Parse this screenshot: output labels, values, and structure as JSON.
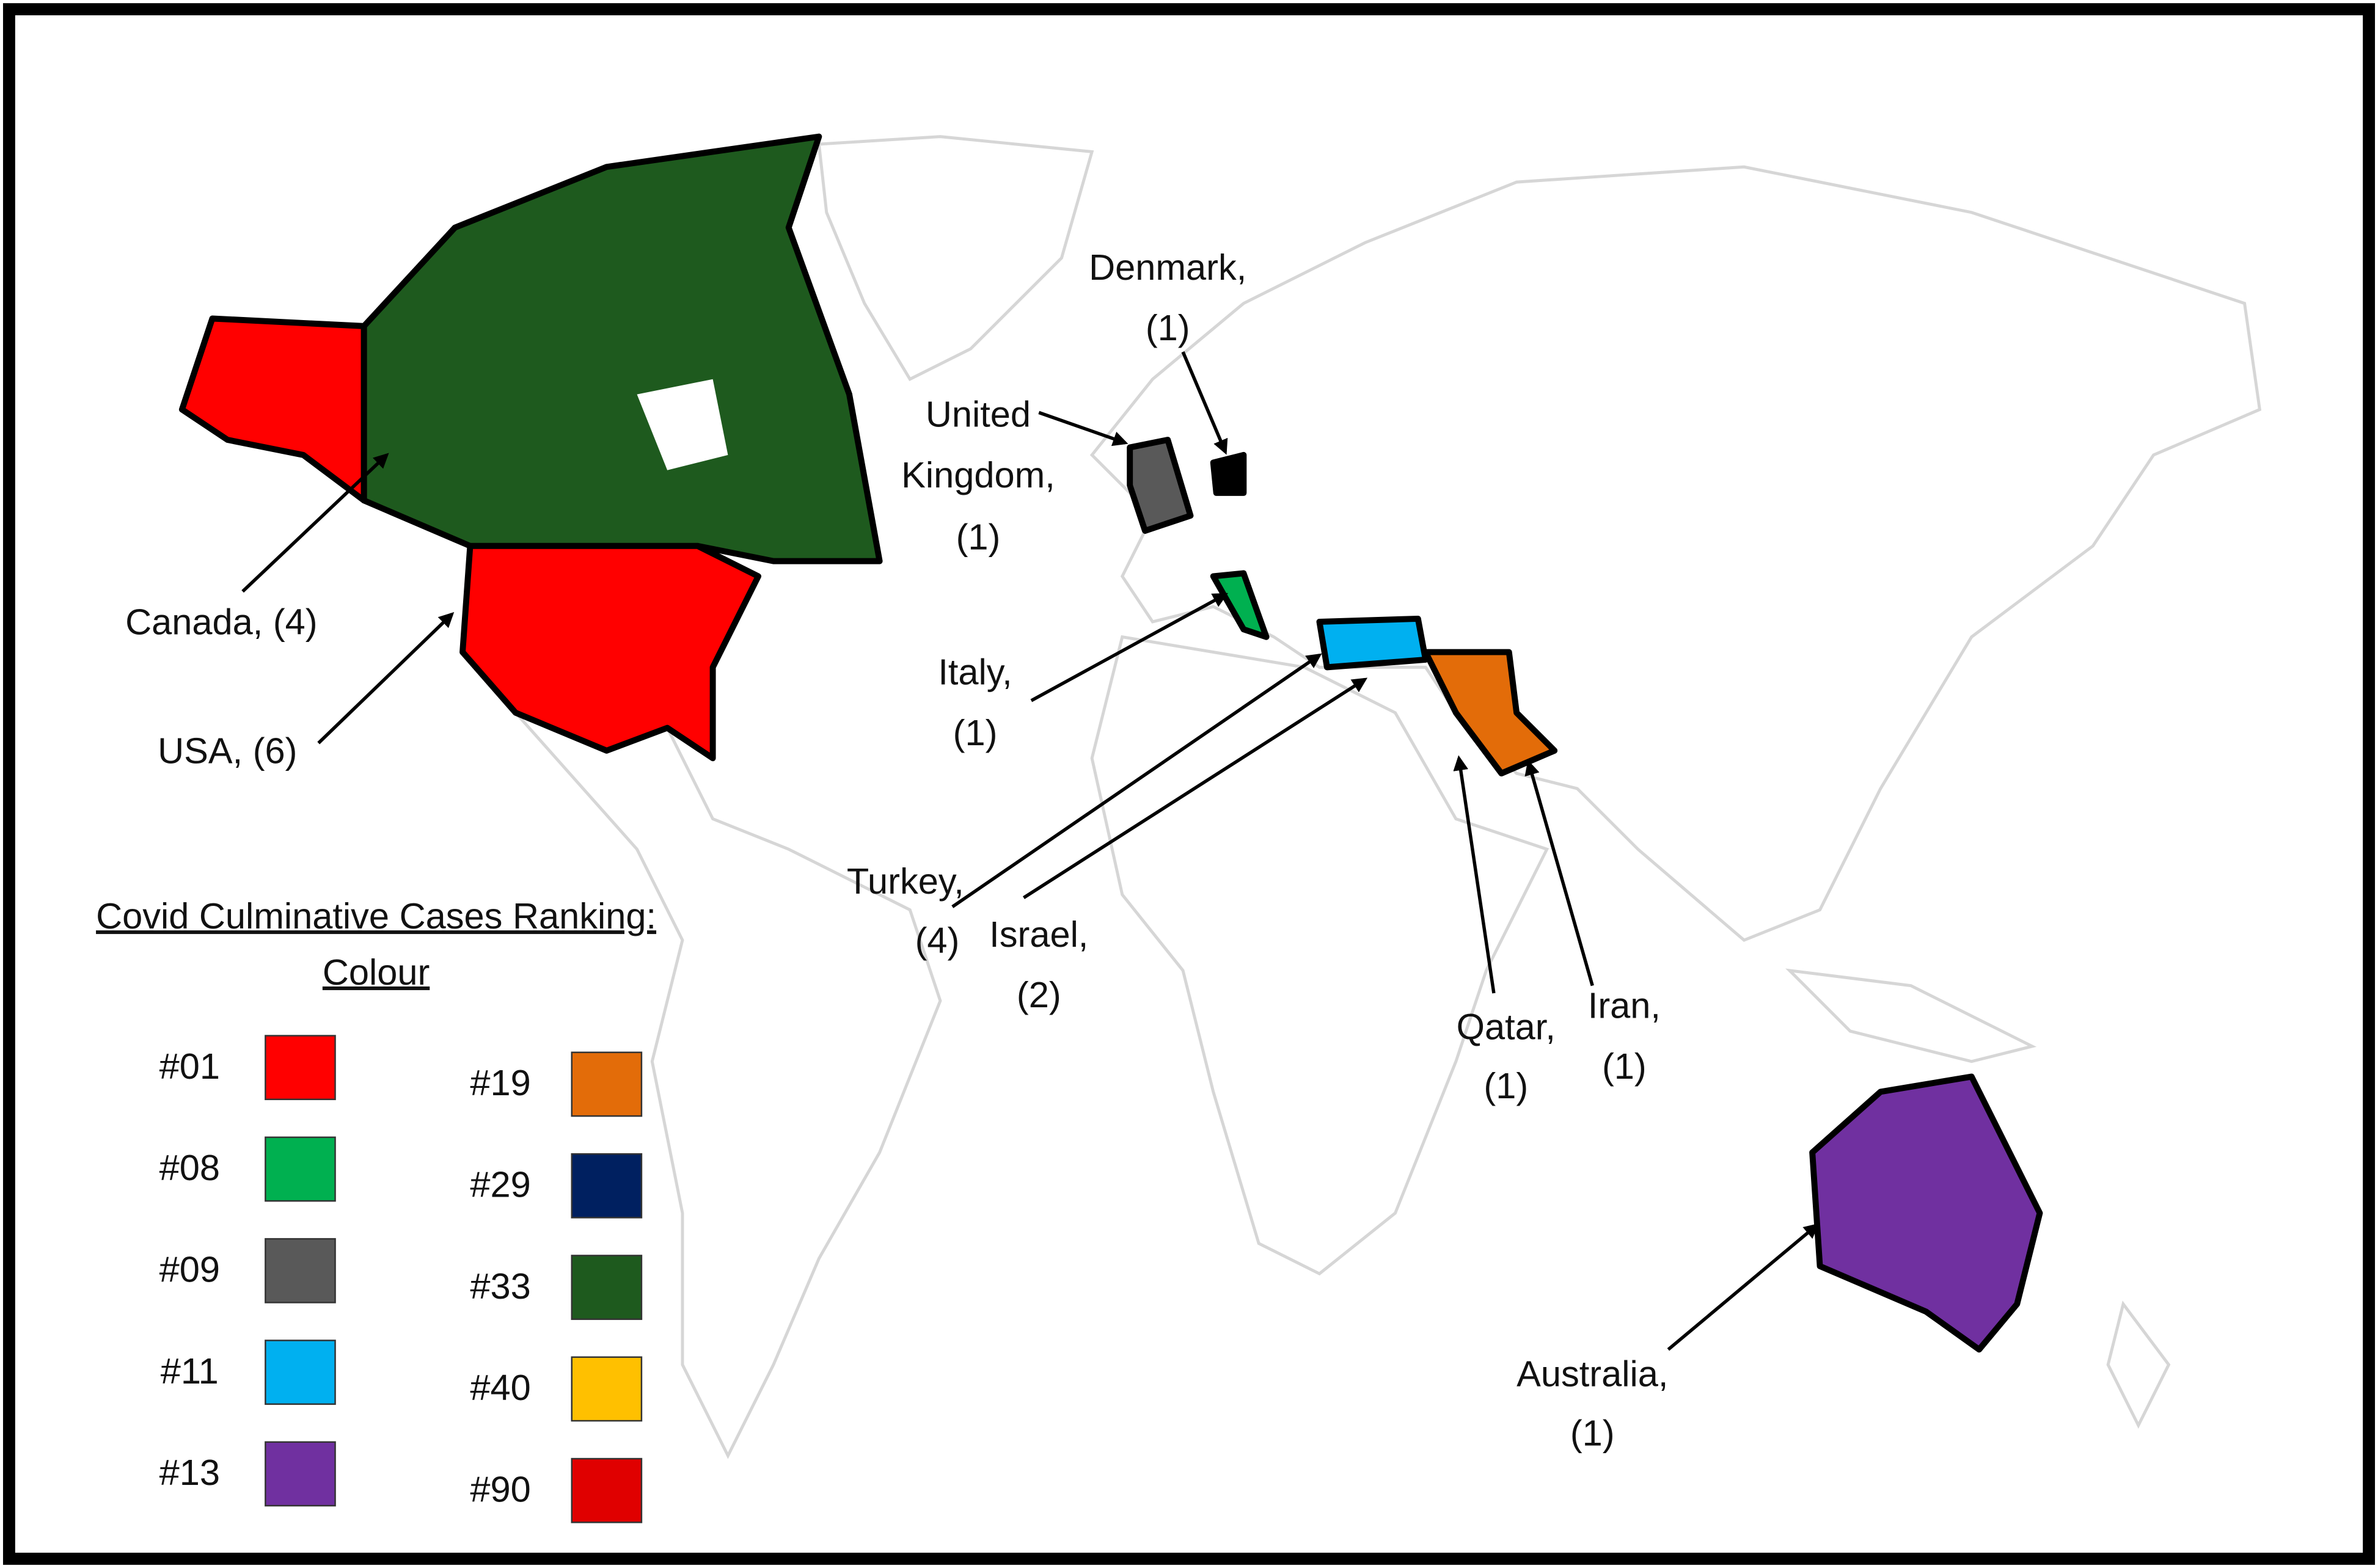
{
  "legend": {
    "title": "Covid Culminative Cases Ranking:",
    "subtitle": "Colour",
    "items": [
      {
        "label": "#01",
        "color": "#ff0000"
      },
      {
        "label": "#08",
        "color": "#00b050"
      },
      {
        "label": "#09",
        "color": "#595959"
      },
      {
        "label": "#11",
        "color": "#00b0f0"
      },
      {
        "label": "#13",
        "color": "#7030a0"
      },
      {
        "label": "#19",
        "color": "#e36c09"
      },
      {
        "label": "#29",
        "color": "#002060"
      },
      {
        "label": "#33",
        "color": "#1e5a1e"
      },
      {
        "label": "#40",
        "color": "#ffc000"
      },
      {
        "label": "#90",
        "color": "#e00000"
      }
    ]
  },
  "annotations": [
    {
      "lines": [
        "Denmark,",
        "(1)"
      ]
    },
    {
      "lines": [
        "United",
        "Kingdom,",
        "(1)"
      ]
    },
    {
      "lines": [
        "Canada, (4)"
      ]
    },
    {
      "lines": [
        "USA, (6)"
      ]
    },
    {
      "lines": [
        "Italy,",
        "(1)"
      ]
    },
    {
      "lines": [
        "Turkey,",
        "(4)"
      ]
    },
    {
      "lines": [
        "Israel,",
        "(2)"
      ]
    },
    {
      "lines": [
        "Qatar,",
        "(1)"
      ]
    },
    {
      "lines": [
        "Iran,",
        "(1)"
      ]
    },
    {
      "lines": [
        "Australia,",
        "(1)"
      ]
    }
  ]
}
